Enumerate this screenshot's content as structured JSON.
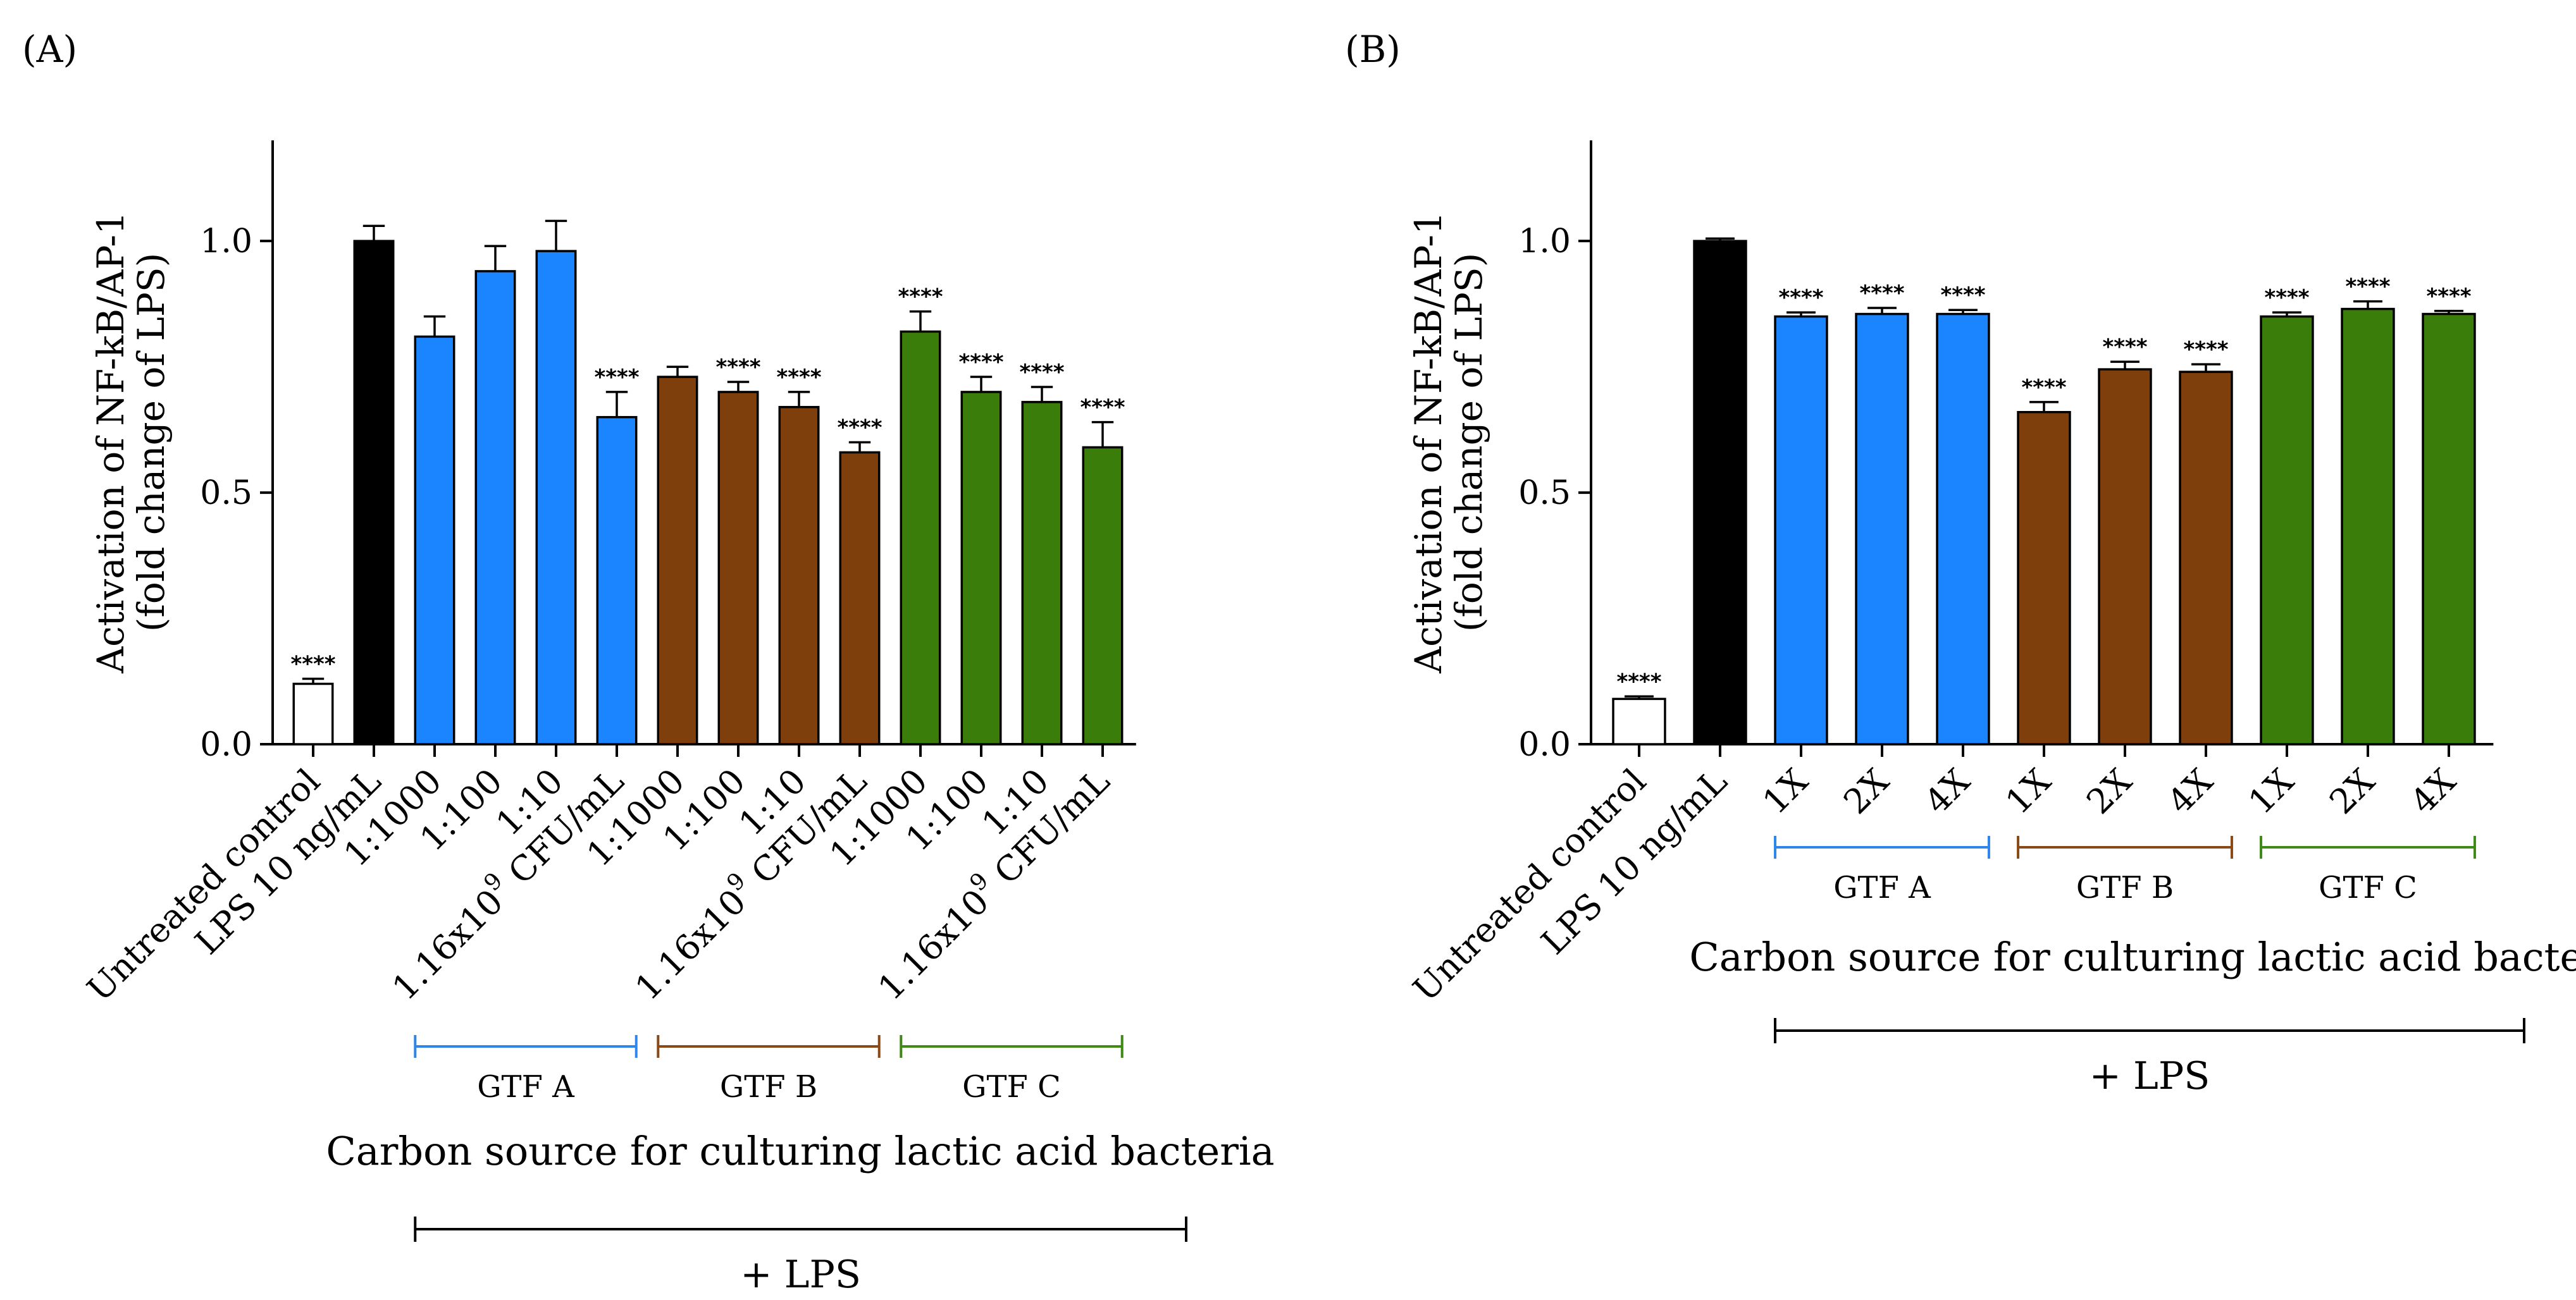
{
  "chart_data": [
    {
      "type": "bar",
      "panel_label": "(A)",
      "ylabel_line1": "Activation of NF-kB/AP-1",
      "ylabel_line2": "(fold change of LPS)",
      "ylim": [
        0,
        1.2
      ],
      "yticks": [
        0.0,
        0.5,
        1.0
      ],
      "ytick_labels": [
        "0.0",
        "0.5",
        "1.0"
      ],
      "categories": [
        "Untreated control",
        "LPS 10 ng/mL",
        "1:1000",
        "1:100",
        "1:10",
        "1.16x10^9 CFU/mL",
        "1:1000",
        "1:100",
        "1:10",
        "1.16x10^9 CFU/mL",
        "1:1000",
        "1:100",
        "1:10",
        "1.16x10^9 CFU/mL"
      ],
      "values": [
        0.12,
        1.0,
        0.81,
        0.94,
        0.98,
        0.65,
        0.73,
        0.7,
        0.67,
        0.58,
        0.82,
        0.7,
        0.68,
        0.59
      ],
      "errors": [
        0.01,
        0.03,
        0.04,
        0.05,
        0.06,
        0.05,
        0.02,
        0.02,
        0.03,
        0.02,
        0.04,
        0.03,
        0.03,
        0.05
      ],
      "group": [
        "control",
        "lps",
        "A",
        "A",
        "A",
        "A",
        "B",
        "B",
        "B",
        "B",
        "C",
        "C",
        "C",
        "C"
      ],
      "significance": [
        "****",
        "",
        "",
        "",
        "",
        "****",
        "",
        "****",
        "****",
        "****",
        "****",
        "****",
        "****",
        "****"
      ],
      "groups": [
        {
          "key": "A",
          "label": "GTF A"
        },
        {
          "key": "B",
          "label": "GTF B"
        },
        {
          "key": "C",
          "label": "GTF C"
        }
      ],
      "xlabel": "Carbon source for culturing lactic acid bacteria",
      "lps_label": "+ LPS",
      "cfu_base": "1.16x10",
      "cfu_exp": "9",
      "cfu_unit": " CFU/mL"
    },
    {
      "type": "bar",
      "panel_label": "(B)",
      "ylabel_line1": "Activation of NF-kB/AP-1",
      "ylabel_line2": "(fold change of LPS)",
      "ylim": [
        0,
        1.2
      ],
      "yticks": [
        0.0,
        0.5,
        1.0
      ],
      "ytick_labels": [
        "0.0",
        "0.5",
        "1.0"
      ],
      "categories": [
        "Untreated control",
        "LPS 10 ng/mL",
        "1X",
        "2X",
        "4X",
        "1X",
        "2X",
        "4X",
        "1X",
        "2X",
        "4X"
      ],
      "values": [
        0.09,
        1.0,
        0.85,
        0.855,
        0.855,
        0.66,
        0.745,
        0.74,
        0.85,
        0.865,
        0.855
      ],
      "errors": [
        0.005,
        0.005,
        0.008,
        0.012,
        0.008,
        0.02,
        0.015,
        0.015,
        0.008,
        0.015,
        0.006
      ],
      "group": [
        "control",
        "lps",
        "A",
        "A",
        "A",
        "B",
        "B",
        "B",
        "C",
        "C",
        "C"
      ],
      "significance": [
        "****",
        "",
        "****",
        "****",
        "****",
        "****",
        "****",
        "****",
        "****",
        "****",
        "****"
      ],
      "groups": [
        {
          "key": "A",
          "label": "GTF A"
        },
        {
          "key": "B",
          "label": "GTF B"
        },
        {
          "key": "C",
          "label": "GTF C"
        }
      ],
      "xlabel": "Carbon source for culturing lactic acid bacteria",
      "lps_label": "+ LPS"
    }
  ],
  "colors": {
    "control": "#ffffff",
    "lps": "#000000",
    "A": "#1a85ff",
    "B": "#7f3f0c",
    "C": "#3a7d0a",
    "bracketA": "#2f86e8",
    "bracketB": "#8a4a17",
    "bracketC": "#3f8a16"
  }
}
